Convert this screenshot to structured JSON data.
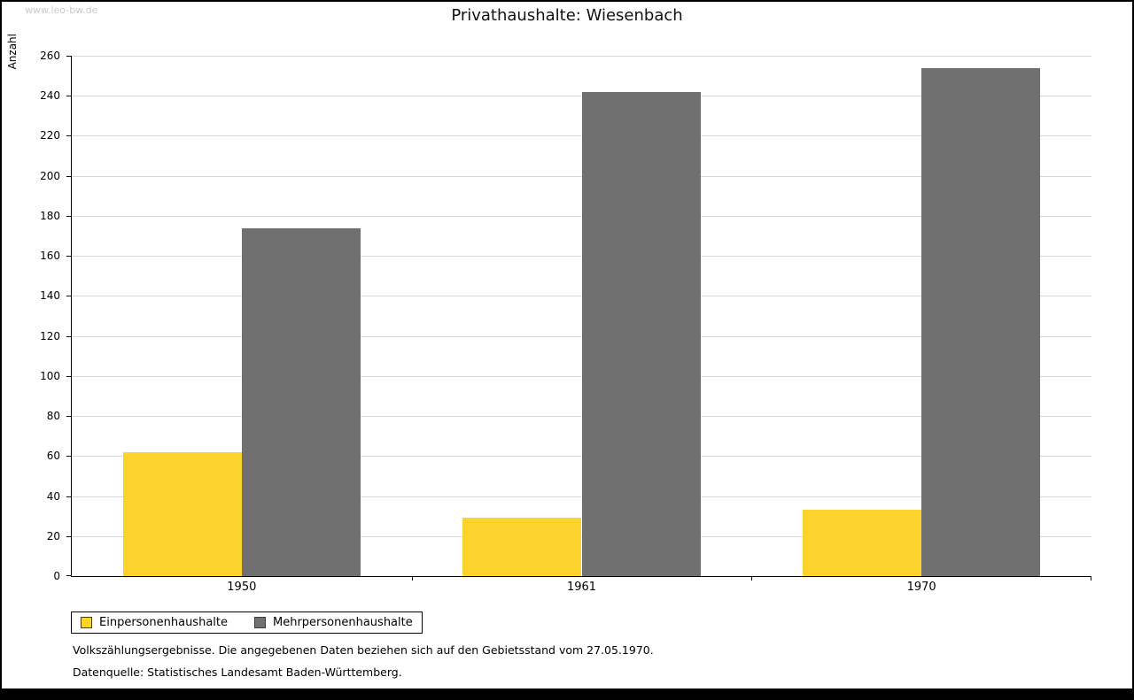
{
  "watermark": "www.leo-bw.de",
  "footer": {
    "line1": "Volkszählungsergebnisse. Die angegebenen Daten beziehen sich auf den Gebietsstand vom 27.05.1970.",
    "line2": "Datenquelle: Statistisches Landesamt Baden-Württemberg."
  },
  "chart_data": {
    "type": "bar",
    "title": "Privathaushalte: Wiesenbach",
    "categories": [
      "1950",
      "1961",
      "1970"
    ],
    "series": [
      {
        "name": "Einpersonenhaushalte",
        "color": "#fcd32c",
        "values": [
          62,
          29,
          33
        ]
      },
      {
        "name": "Mehrpersonenhaushalte",
        "color": "#707070",
        "values": [
          174,
          242,
          254
        ]
      }
    ],
    "xlabel": "",
    "ylabel": "Anzahl",
    "ylim": [
      0,
      260
    ],
    "ytick_step": 20,
    "grid": true,
    "legend_position": "bottom-left"
  }
}
